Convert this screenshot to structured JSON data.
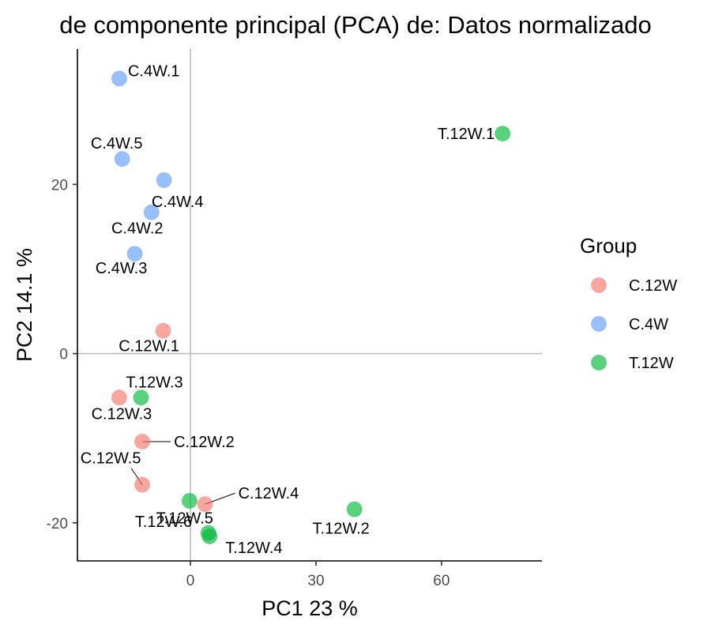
{
  "chart_data": {
    "type": "scatter",
    "title": "de componente principal (PCA) de:  Datos normalizado",
    "xlabel": "PC1 23 %",
    "ylabel": "PC2 14.1 %",
    "xlim": [
      -27,
      84
    ],
    "ylim": [
      -24.5,
      36
    ],
    "xticks": [
      0,
      30,
      60
    ],
    "yticks": [
      -20,
      0,
      20
    ],
    "reference_lines": {
      "x": 0,
      "y": 0
    },
    "grid": false,
    "legend": {
      "title": "Group",
      "position": "right"
    },
    "groups": [
      {
        "name": "C.12W",
        "color": "#F8766D"
      },
      {
        "name": "C.4W",
        "color": "#619CFF"
      },
      {
        "name": "T.12W",
        "color": "#00BA38"
      }
    ],
    "points": [
      {
        "label": "C.4W.1",
        "group": "C.4W",
        "x": -17,
        "y": 32.5
      },
      {
        "label": "C.4W.5",
        "group": "C.4W",
        "x": -16.3,
        "y": 23
      },
      {
        "label": "C.4W.4",
        "group": "C.4W",
        "x": -6.3,
        "y": 20.5
      },
      {
        "label": "C.4W.2",
        "group": "C.4W",
        "x": -9.3,
        "y": 16.7
      },
      {
        "label": "C.4W.3",
        "group": "C.4W",
        "x": -13.3,
        "y": 11.8
      },
      {
        "label": "T.12W.1",
        "group": "T.12W",
        "x": 74.6,
        "y": 26
      },
      {
        "label": "C.12W.1",
        "group": "C.12W",
        "x": -6.5,
        "y": 2.7
      },
      {
        "label": "C.12W.3",
        "group": "C.12W",
        "x": -17,
        "y": -5.2
      },
      {
        "label": "T.12W.3",
        "group": "T.12W",
        "x": -11.8,
        "y": -5.2
      },
      {
        "label": "C.12W.2",
        "group": "C.12W",
        "x": -11.5,
        "y": -10.4
      },
      {
        "label": "C.12W.5",
        "group": "C.12W",
        "x": -11.5,
        "y": -15.5
      },
      {
        "label": "T.12W.6",
        "group": "T.12W",
        "x": -0.2,
        "y": -17.4
      },
      {
        "label": "C.12W.4",
        "group": "C.12W",
        "x": 3.5,
        "y": -17.8
      },
      {
        "label": "T.12W.2",
        "group": "T.12W",
        "x": 39.2,
        "y": -18.4
      },
      {
        "label": "T.12W.5",
        "group": "T.12W",
        "x": 4.3,
        "y": -21.2
      },
      {
        "label": "T.12W.4",
        "group": "T.12W",
        "x": 4.6,
        "y": -21.6
      }
    ]
  }
}
